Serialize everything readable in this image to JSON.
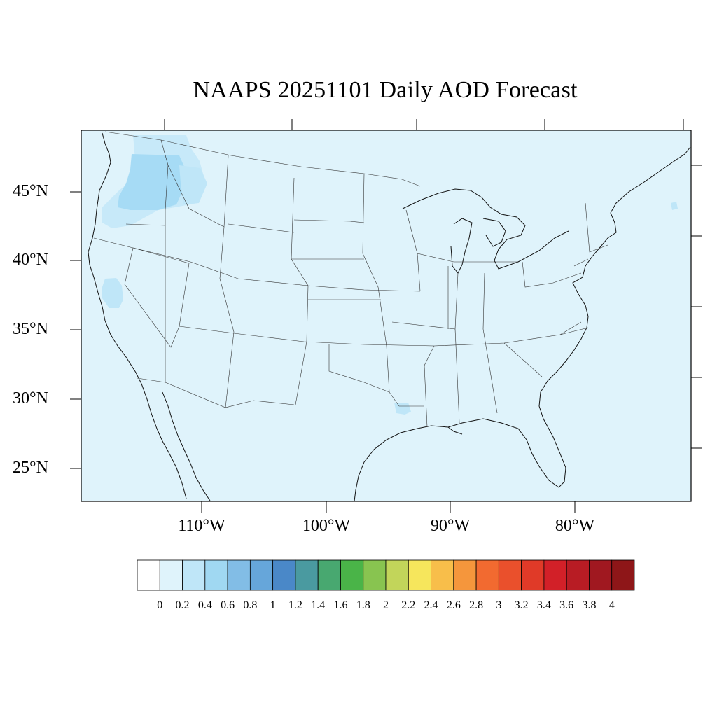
{
  "title": "NAAPS 20251101 Daily AOD Forecast",
  "map": {
    "projection": "lambert-conformal",
    "background_color": "#dff3fb",
    "latitude_labels": [
      "45°N",
      "40°N",
      "35°N",
      "30°N",
      "25°N"
    ],
    "longitude_labels": [
      "110°W",
      "100°W",
      "90°W",
      "80°W"
    ],
    "aod_patches": [
      {
        "region": "Washington / Oregon",
        "level": "0.4-0.6",
        "color": "#a6dbf5"
      },
      {
        "region": "northern Idaho",
        "level": "0.2-0.4",
        "color": "#bfe6f8"
      },
      {
        "region": "northern California",
        "level": "0.2-0.4",
        "color": "#bfe6f8"
      },
      {
        "region": "Louisiana",
        "level": "0.2-0.4",
        "color": "#bfe6f8"
      }
    ]
  },
  "colorbar": {
    "labels": [
      "0",
      "0.2",
      "0.4",
      "0.6",
      "0.8",
      "1",
      "1.2",
      "1.4",
      "1.6",
      "1.8",
      "2",
      "2.2",
      "2.4",
      "2.6",
      "2.8",
      "3",
      "3.2",
      "3.4",
      "3.6",
      "3.8",
      "4"
    ],
    "colors": [
      "#ffffff",
      "#dff3fb",
      "#bfe6f8",
      "#a0d8f2",
      "#82bde6",
      "#66a6da",
      "#4a88c8",
      "#4a9aa0",
      "#48a870",
      "#4ab448",
      "#88c450",
      "#c2d55a",
      "#f6e65c",
      "#f8be4a",
      "#f5963c",
      "#f26a30",
      "#ea502c",
      "#e03a28",
      "#d22028",
      "#b81c24",
      "#a01820",
      "#8e1618"
    ]
  }
}
